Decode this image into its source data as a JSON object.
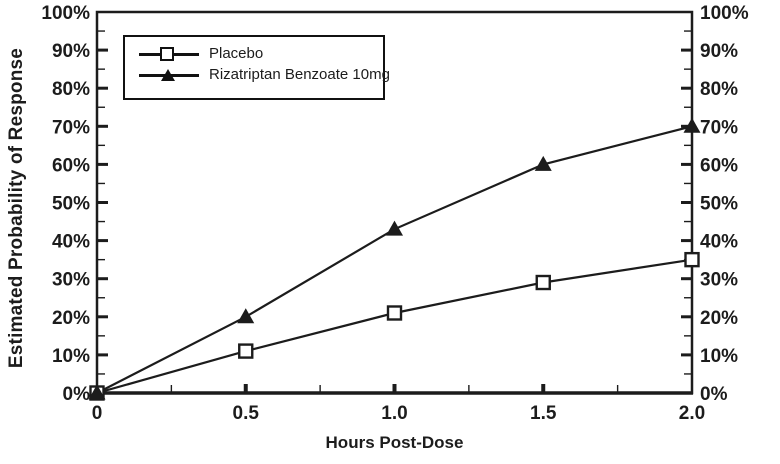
{
  "colors": {
    "line": "#1c1c1c",
    "text": "#1c1c1c",
    "background": "#ffffff"
  },
  "chart_data": {
    "type": "line",
    "title": "",
    "xlabel": "Hours Post-Dose",
    "ylabel": "Estimated Probability of Response",
    "x": [
      0,
      0.5,
      1.0,
      1.5,
      2.0
    ],
    "series": [
      {
        "name": "Placebo",
        "marker": "open-square",
        "values": [
          0,
          11,
          21,
          29,
          35
        ]
      },
      {
        "name": "Rizatriptan Benzoate 10mg",
        "marker": "filled-triangle",
        "values": [
          0,
          20,
          43,
          60,
          70
        ]
      }
    ],
    "xlim": [
      0,
      2
    ],
    "ylim": [
      0,
      100
    ],
    "x_ticks": {
      "values": [
        0,
        0.5,
        1.0,
        1.5,
        2.0
      ],
      "labels": [
        "0",
        "0.5",
        "1.0",
        "1.5",
        "2.0"
      ],
      "minor": [
        0.25,
        0.75,
        1.25,
        1.75
      ]
    },
    "y_ticks": {
      "values": [
        0,
        10,
        20,
        30,
        40,
        50,
        60,
        70,
        80,
        90,
        100
      ],
      "labels": [
        "0%",
        "10%",
        "20%",
        "30%",
        "40%",
        "50%",
        "60%",
        "70%",
        "80%",
        "90%",
        "100%"
      ],
      "minor": [
        5,
        15,
        25,
        35,
        45,
        55,
        65,
        75,
        85,
        95
      ],
      "mirror_right": true
    },
    "grid": false,
    "legend": {
      "position": "top-left-inside",
      "entries": [
        {
          "label": "Placebo",
          "marker": "open-square"
        },
        {
          "label": "Rizatriptan Benzoate 10mg",
          "marker": "filled-triangle"
        }
      ]
    }
  }
}
